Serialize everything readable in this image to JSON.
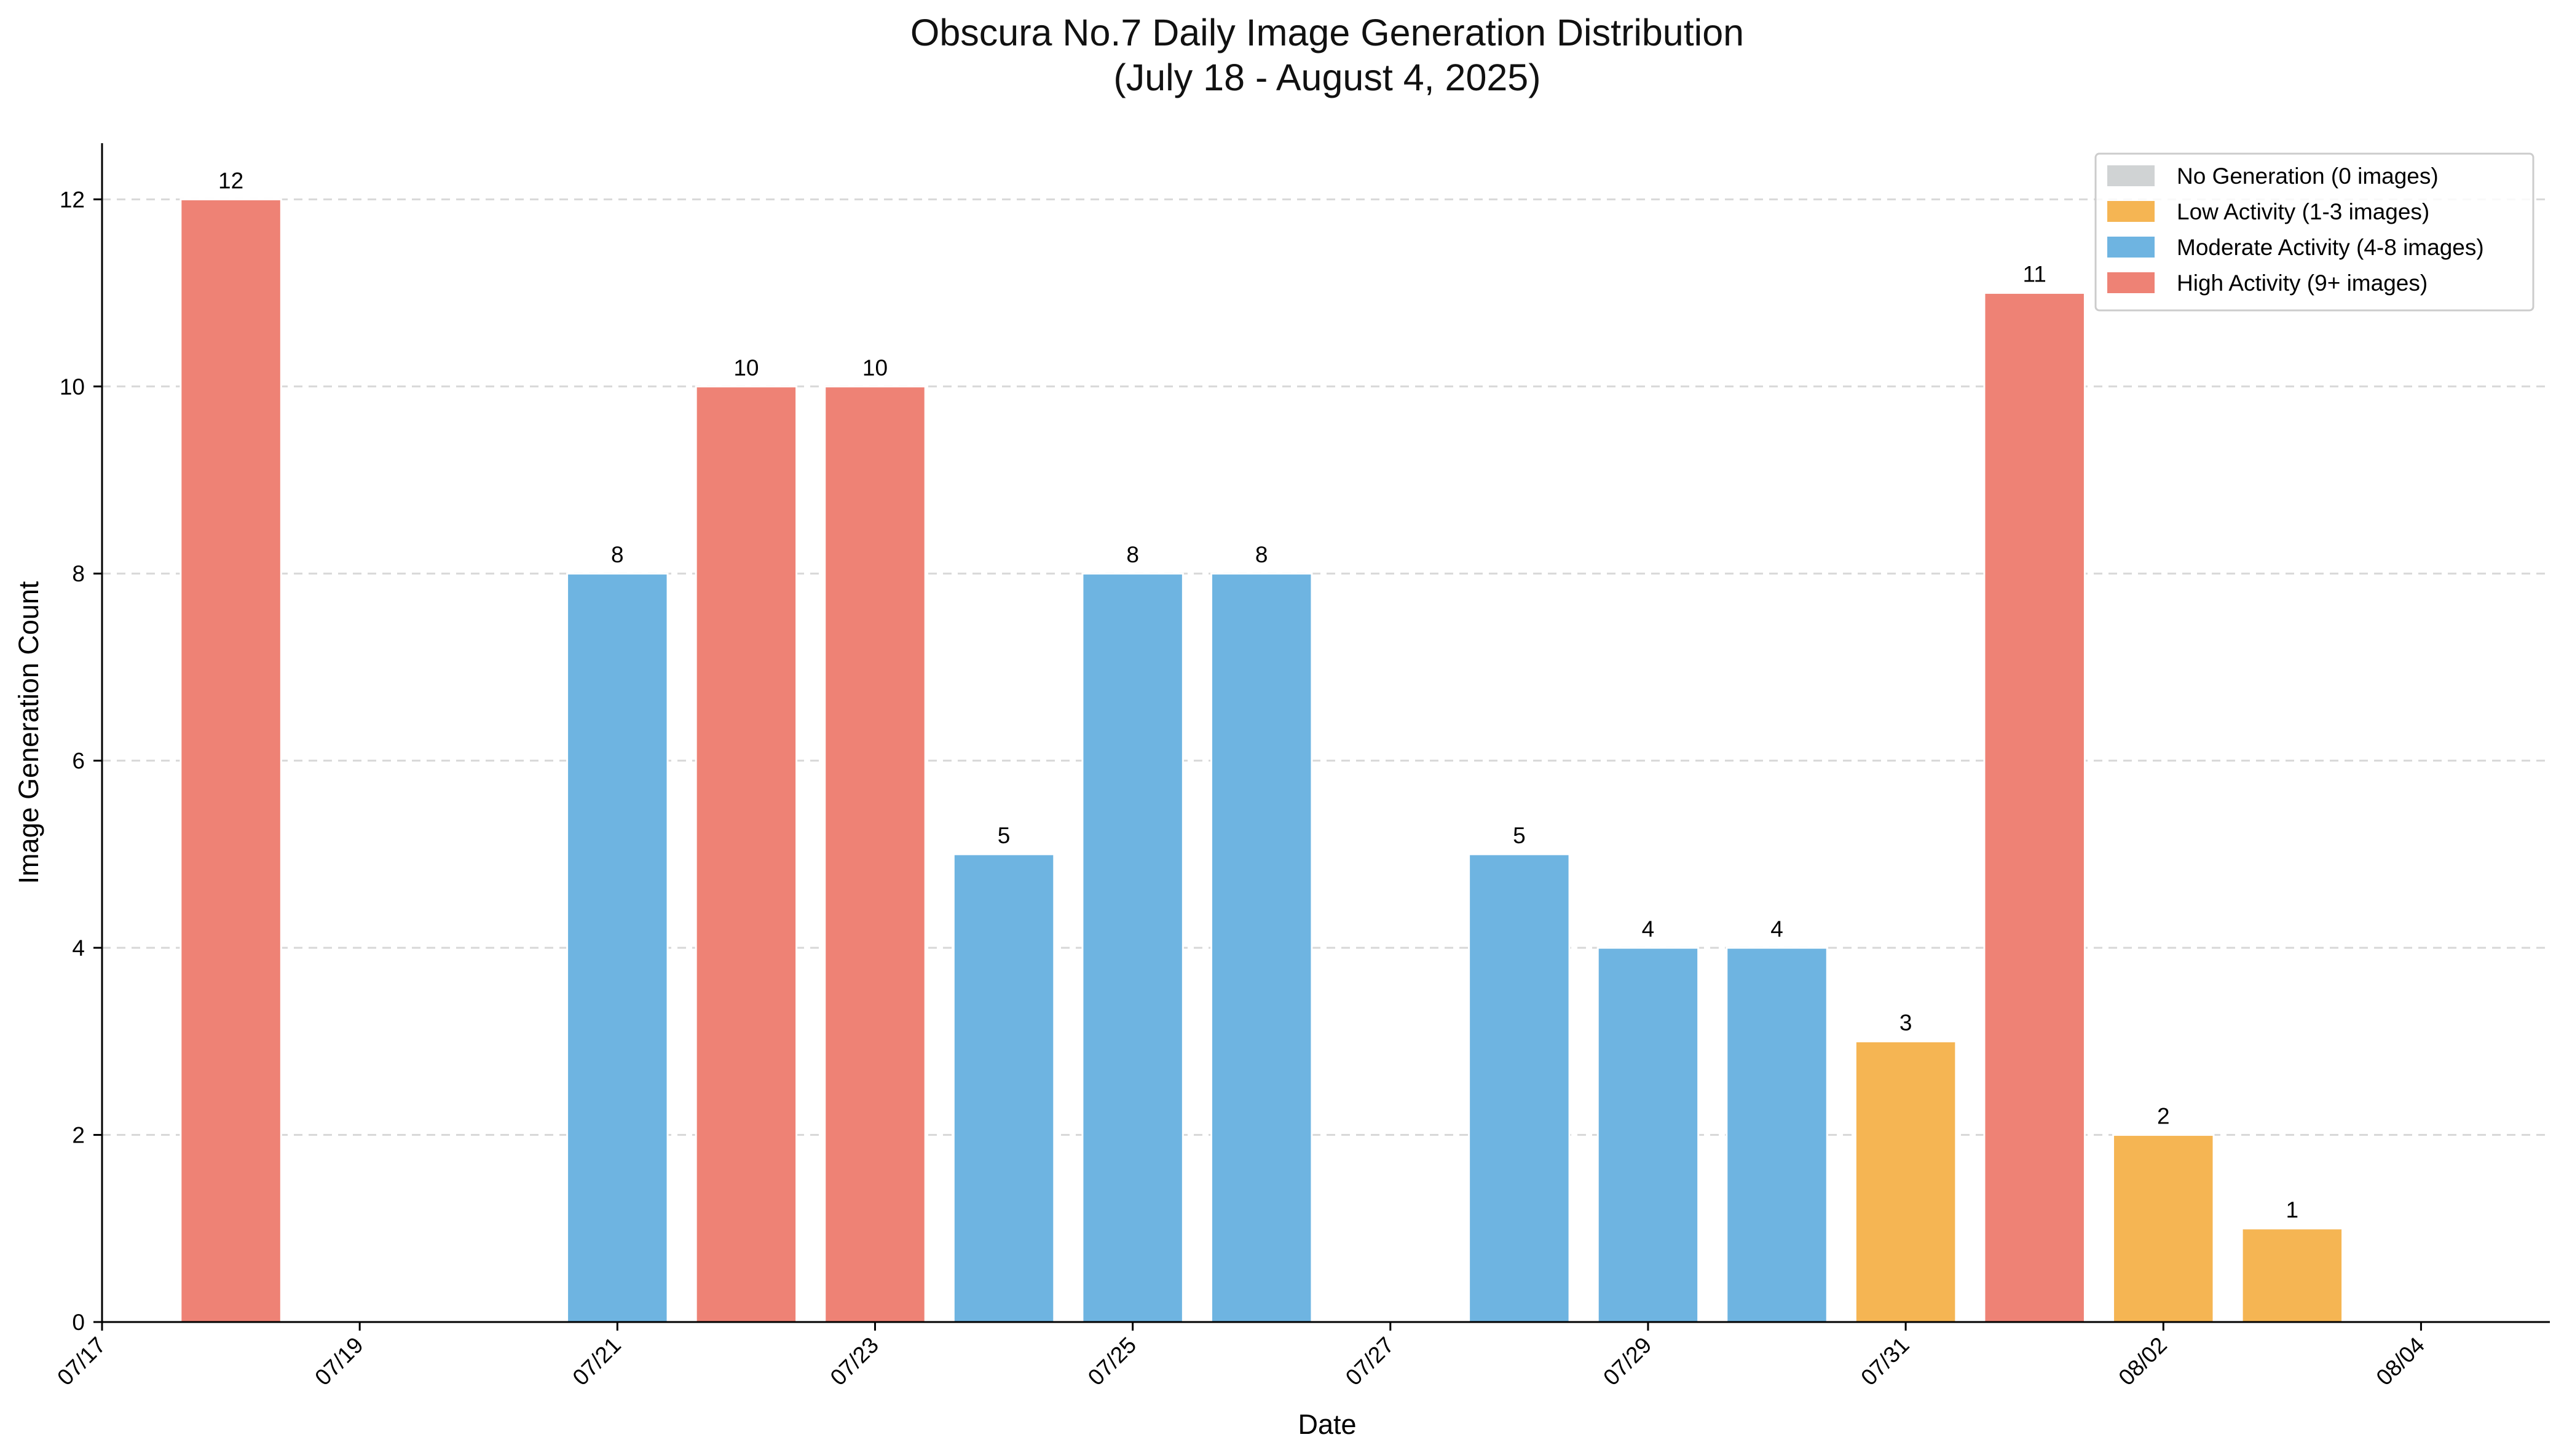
{
  "chart_data": {
    "type": "bar",
    "title": "Obscura No.7 Daily Image Generation Distribution",
    "subtitle": "(July 18 - August 4, 2025)",
    "xlabel": "Date",
    "ylabel": "Image Generation Count",
    "ylim": [
      0,
      12.6
    ],
    "yticks": [
      0,
      2,
      4,
      6,
      8,
      10,
      12
    ],
    "xticks": [
      "07/17",
      "07/19",
      "07/21",
      "07/23",
      "07/25",
      "07/27",
      "07/29",
      "07/31",
      "08/02",
      "08/04"
    ],
    "x_range": [
      "2025-07-17",
      "2025-08-05"
    ],
    "grid": "horizontal dashed",
    "legend_position": "top-right",
    "legend": [
      {
        "label": "No Generation (0 images)",
        "color": "#d0d3d4"
      },
      {
        "label": "Low Activity (1-3 images)",
        "color": "#f5b553"
      },
      {
        "label": "Moderate Activity (4-8 images)",
        "color": "#6eb4e1"
      },
      {
        "label": "High Activity (9+ images)",
        "color": "#ee8275"
      }
    ],
    "colors": {
      "none": "#d0d3d4",
      "low": "#f5b553",
      "moderate": "#6eb4e1",
      "high": "#ee8275"
    },
    "bars": [
      {
        "date": "2025-07-18",
        "value": 12,
        "category": "high"
      },
      {
        "date": "2025-07-19",
        "value": 0,
        "category": "none"
      },
      {
        "date": "2025-07-20",
        "value": 0,
        "category": "none"
      },
      {
        "date": "2025-07-21",
        "value": 8,
        "category": "moderate"
      },
      {
        "date": "2025-07-22",
        "value": 10,
        "category": "high"
      },
      {
        "date": "2025-07-23",
        "value": 10,
        "category": "high"
      },
      {
        "date": "2025-07-24",
        "value": 5,
        "category": "moderate"
      },
      {
        "date": "2025-07-25",
        "value": 8,
        "category": "moderate"
      },
      {
        "date": "2025-07-26",
        "value": 8,
        "category": "moderate"
      },
      {
        "date": "2025-07-27",
        "value": 0,
        "category": "none"
      },
      {
        "date": "2025-07-28",
        "value": 5,
        "category": "moderate"
      },
      {
        "date": "2025-07-29",
        "value": 4,
        "category": "moderate"
      },
      {
        "date": "2025-07-30",
        "value": 4,
        "category": "moderate"
      },
      {
        "date": "2025-07-31",
        "value": 3,
        "category": "low"
      },
      {
        "date": "2025-08-01",
        "value": 11,
        "category": "high"
      },
      {
        "date": "2025-08-02",
        "value": 2,
        "category": "low"
      },
      {
        "date": "2025-08-03",
        "value": 1,
        "category": "low"
      },
      {
        "date": "2025-08-04",
        "value": 0,
        "category": "none"
      }
    ]
  }
}
